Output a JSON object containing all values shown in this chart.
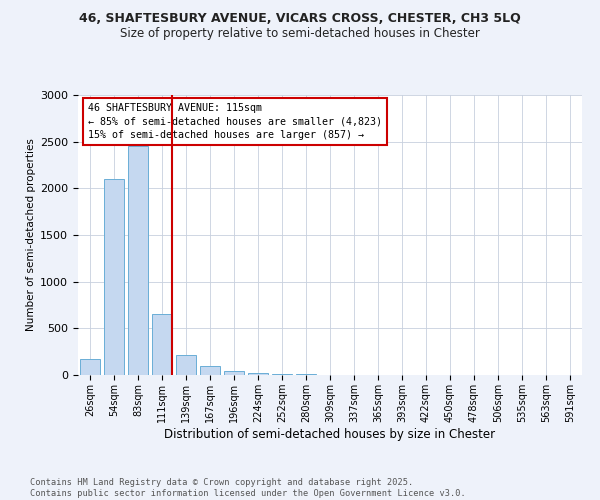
{
  "title_line1": "46, SHAFTESBURY AVENUE, VICARS CROSS, CHESTER, CH3 5LQ",
  "title_line2": "Size of property relative to semi-detached houses in Chester",
  "xlabel": "Distribution of semi-detached houses by size in Chester",
  "ylabel": "Number of semi-detached properties",
  "categories": [
    "26sqm",
    "54sqm",
    "83sqm",
    "111sqm",
    "139sqm",
    "167sqm",
    "196sqm",
    "224sqm",
    "252sqm",
    "280sqm",
    "309sqm",
    "337sqm",
    "365sqm",
    "393sqm",
    "422sqm",
    "450sqm",
    "478sqm",
    "506sqm",
    "535sqm",
    "563sqm",
    "591sqm"
  ],
  "values": [
    175,
    2100,
    2450,
    650,
    215,
    100,
    40,
    25,
    15,
    10,
    0,
    0,
    0,
    0,
    0,
    0,
    0,
    0,
    0,
    0,
    0
  ],
  "bar_color": "#c5d8f0",
  "bar_edge_color": "#6aaed6",
  "highlight_line_index": 3,
  "highlight_color": "#cc0000",
  "annotation_box_text": "46 SHAFTESBURY AVENUE: 115sqm\n← 85% of semi-detached houses are smaller (4,823)\n15% of semi-detached houses are larger (857) →",
  "annotation_box_color": "#cc0000",
  "ylim": [
    0,
    3000
  ],
  "yticks": [
    0,
    500,
    1000,
    1500,
    2000,
    2500,
    3000
  ],
  "footer_text": "Contains HM Land Registry data © Crown copyright and database right 2025.\nContains public sector information licensed under the Open Government Licence v3.0.",
  "bg_color": "#eef2fa",
  "plot_bg_color": "#ffffff",
  "grid_color": "#c8d0de"
}
